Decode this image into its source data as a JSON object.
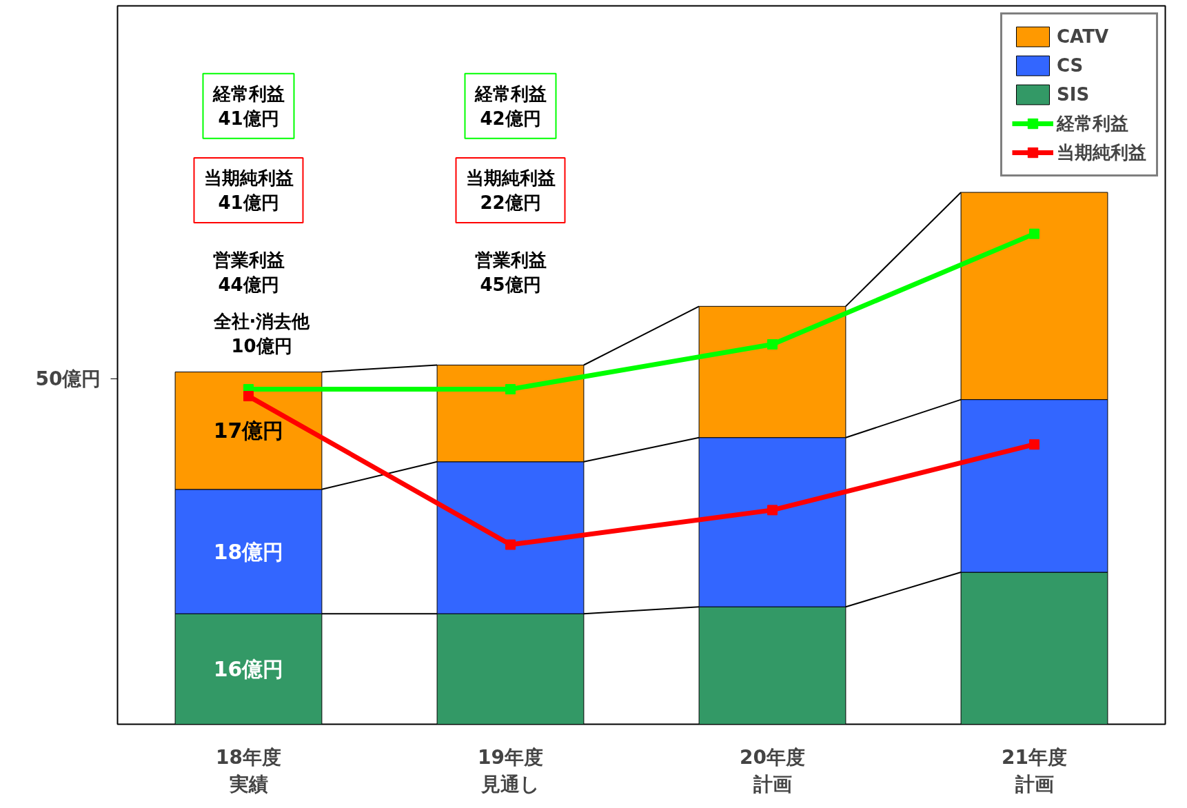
{
  "chart_data": {
    "type": "bar",
    "stacked": true,
    "categories": [
      "18年度実績",
      "19年度見通し",
      "20年度計画",
      "21年度計画"
    ],
    "ylim": [
      0,
      104
    ],
    "yticks": [
      {
        "value": 50,
        "label": "50億円"
      }
    ],
    "series": [
      {
        "name": "SIS",
        "color": "#339966",
        "values": [
          16,
          16,
          17,
          22
        ],
        "value_labels": [
          "16億円",
          null,
          null,
          null
        ]
      },
      {
        "name": "CS",
        "color": "#3366ff",
        "values": [
          18,
          22,
          24.5,
          25
        ],
        "value_labels": [
          "18億円",
          null,
          null,
          null
        ]
      },
      {
        "name": "CATV",
        "color": "#ff9900",
        "values": [
          17,
          14,
          19,
          30
        ],
        "value_labels": [
          "17億円",
          null,
          null,
          null
        ]
      },
      {
        "name": "経常利益",
        "type": "line",
        "color": "#00ff00",
        "values": [
          48.5,
          48.5,
          55,
          71
        ]
      },
      {
        "name": "当期純利益",
        "type": "line",
        "color": "#ff0000",
        "values": [
          47.5,
          26,
          31,
          40.5
        ]
      }
    ],
    "marker": "square",
    "legend": "top right",
    "grid": false,
    "annotations": [
      "経常利益\n41億円",
      "当期純利益\n41億円",
      "営業利益\n44億円",
      "全社·消去他\n10億円",
      "経常利益\n42億円",
      "当期純利益\n22億円",
      "営業利益\n45億円"
    ]
  }
}
